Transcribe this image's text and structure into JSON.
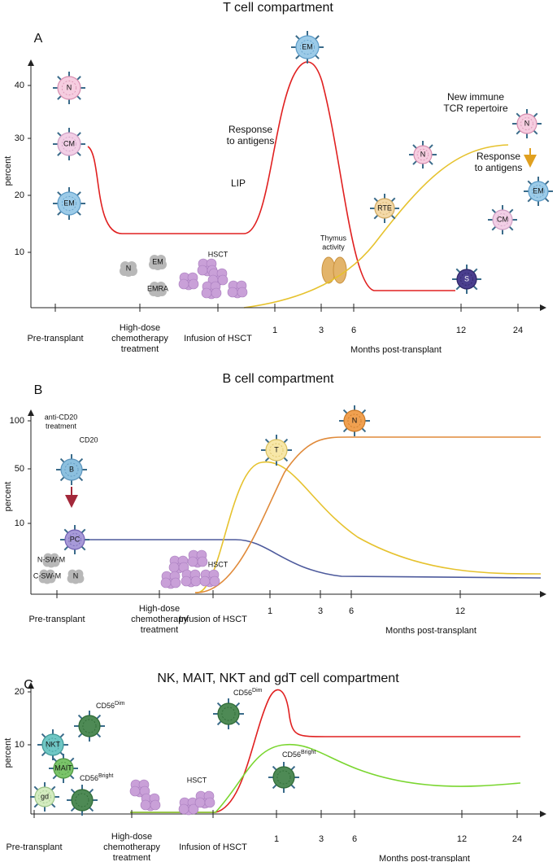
{
  "panels": [
    {
      "letter": "A",
      "title": "T cell compartment",
      "y_label": "percent",
      "y_ticks": [
        "10",
        "20",
        "30",
        "40"
      ],
      "x_ticks": [
        [
          "Pre-transplant"
        ],
        [
          "High-dose",
          "chemotherapy",
          "treatment"
        ],
        [
          "Infusion of HSCT"
        ],
        [
          "1"
        ],
        [
          "3"
        ],
        [
          "6"
        ],
        [
          "12"
        ],
        [
          "24"
        ]
      ],
      "x_axis_label": "Months post-transplant",
      "annotations": [
        [
          "Response",
          "to antigens"
        ],
        [
          "LIP"
        ],
        [
          "New immune",
          "TCR repertoire"
        ],
        [
          "Response",
          "to antigens"
        ],
        [
          "Thymus",
          "activity"
        ],
        [
          "HSCT"
        ]
      ],
      "cells": [
        "N",
        "CM",
        "EM",
        "N",
        "EM",
        "CM",
        "S",
        "RTE",
        "EM",
        "N",
        "N",
        "EM",
        "EMRA"
      ]
    },
    {
      "letter": "B",
      "title": "B cell compartment",
      "y_label": "percent",
      "y_ticks": [
        "10",
        "50",
        "100"
      ],
      "x_ticks": [
        [
          "Pre-transplant"
        ],
        [
          "High-dose",
          "chemotherapy",
          "treatment"
        ],
        [
          "Infusion of HSCT"
        ],
        [
          "1"
        ],
        [
          "3"
        ],
        [
          "6"
        ],
        [
          "12"
        ]
      ],
      "x_axis_label": "Months post-transplant",
      "annotations": [
        [
          "anti-CD20",
          "treatment"
        ],
        [
          "CD20"
        ],
        [
          "HSCT"
        ]
      ],
      "cells": [
        "B",
        "PC",
        "T",
        "N",
        "N-SW-M",
        "C-SW-M",
        "N"
      ]
    },
    {
      "letter": "C",
      "title": "NK, MAIT, NKT and gdT cell compartment",
      "y_label": "percent",
      "y_ticks": [
        "10",
        "20"
      ],
      "x_ticks": [
        [
          "Pre-transplant"
        ],
        [
          "High-dose",
          "chemotherapy",
          "treatment"
        ],
        [
          "Infusion of HSCT"
        ],
        [
          "1"
        ],
        [
          "3"
        ],
        [
          "6"
        ],
        [
          "12"
        ],
        [
          "24"
        ]
      ],
      "x_axis_label": "Months post-transplant",
      "annotations": [
        [
          "HSCT"
        ]
      ],
      "cd56_labels": [
        {
          "base": "CD56",
          "sup": "Dim"
        },
        {
          "base": "CD56",
          "sup": "Dim"
        },
        {
          "base": "CD56",
          "sup": "Bright"
        },
        {
          "base": "CD56",
          "sup": "Bright"
        }
      ],
      "cells": [
        "NKT",
        "MAIT",
        "gd"
      ]
    }
  ]
}
